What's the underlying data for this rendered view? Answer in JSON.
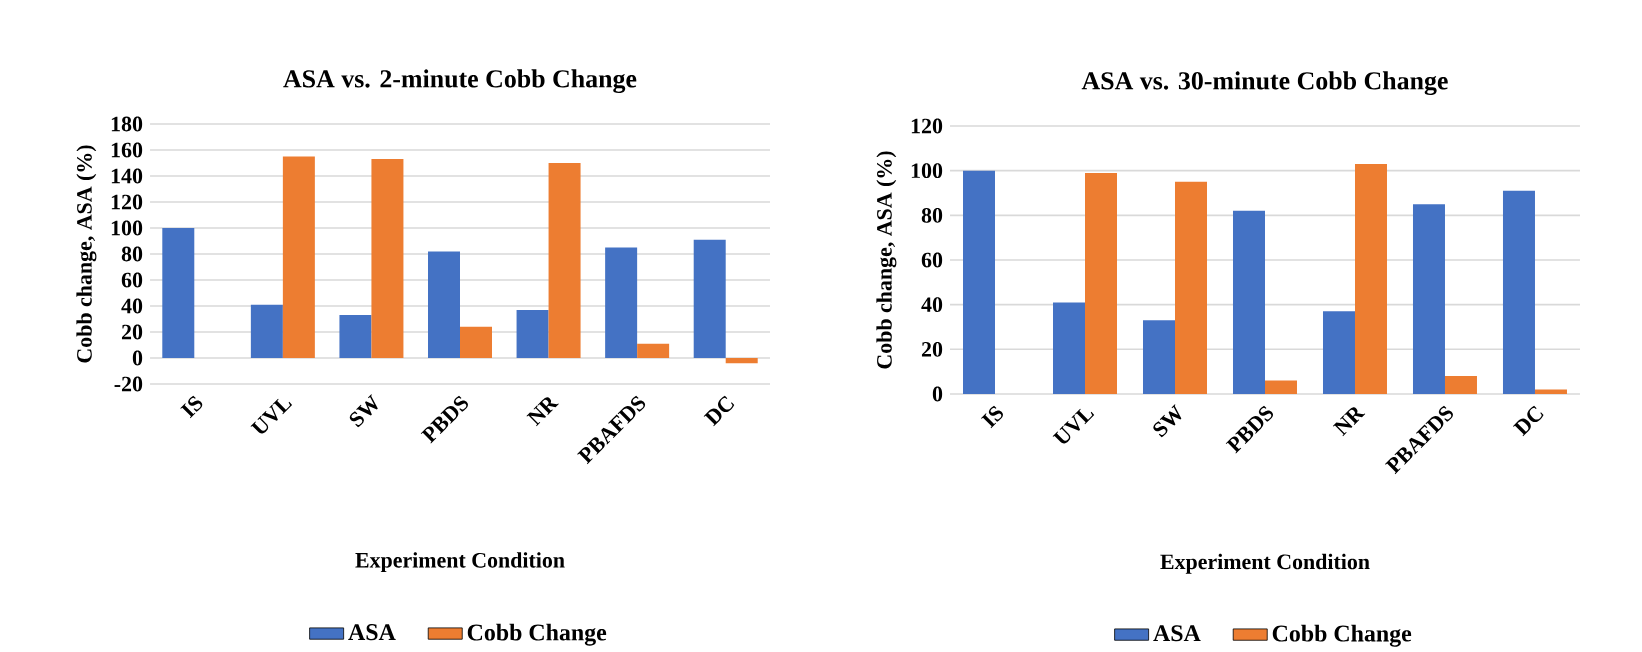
{
  "chart_data": [
    {
      "type": "bar",
      "title": "ASA vs. 2-minute Cobb Change",
      "xlabel": "Experiment Condition",
      "ylabel": "Cobb change, ASA (%)",
      "categories": [
        "IS",
        "UVL",
        "SW",
        "PBDS",
        "NR",
        "PBAFDS",
        "DC"
      ],
      "series": [
        {
          "name": "ASA",
          "color": "#4472c4",
          "values": [
            100,
            41,
            33,
            82,
            37,
            85,
            91
          ]
        },
        {
          "name": "Cobb Change",
          "color": "#ed7d31",
          "values": [
            null,
            155,
            153,
            24,
            150,
            11,
            -4
          ]
        }
      ],
      "ylim": [
        -20,
        180
      ],
      "yticks": [
        -20,
        0,
        20,
        40,
        60,
        80,
        100,
        120,
        140,
        160,
        180
      ],
      "grid": "y",
      "legend": "bottom"
    },
    {
      "type": "bar",
      "title": "ASA vs. 30-minute Cobb Change",
      "xlabel": "Experiment Condition",
      "ylabel": "Cobb change, ASA (%)",
      "categories": [
        "IS",
        "UVL",
        "SW",
        "PBDS",
        "NR",
        "PBAFDS",
        "DC"
      ],
      "series": [
        {
          "name": "ASA",
          "color": "#4472c4",
          "values": [
            100,
            41,
            33,
            82,
            37,
            85,
            91
          ]
        },
        {
          "name": "Cobb Change",
          "color": "#ed7d31",
          "values": [
            null,
            99,
            95,
            6,
            103,
            8,
            2
          ]
        }
      ],
      "ylim": [
        0,
        120
      ],
      "yticks": [
        0,
        20,
        40,
        60,
        80,
        100,
        120
      ],
      "grid": "y",
      "legend": "bottom"
    }
  ]
}
